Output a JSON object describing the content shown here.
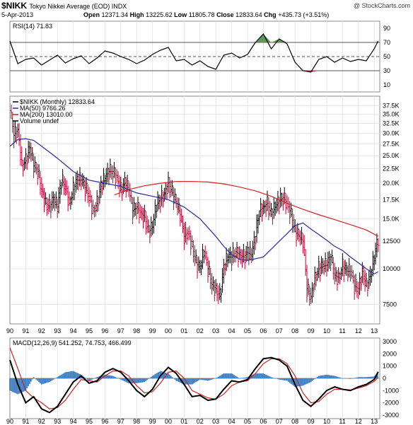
{
  "header": {
    "ticker": "$NIKK",
    "name": "Tokyo Nikkei Average (EOD) INDX",
    "date": "5-Apr-2013",
    "copyright": "@ StockCharts.com",
    "open_label": "Open",
    "open": "12371.34",
    "high_label": "High",
    "high": "13225.62",
    "low_label": "Low",
    "low": "11805.78",
    "close_label": "Close",
    "close": "12833.64",
    "chg_label": "Chg",
    "chg": "+435.73 (+3.51%)"
  },
  "colors": {
    "price_up": "#000000",
    "price_down": "#cc0033",
    "ma50": "#2a2a9c",
    "ma200": "#d42020",
    "macd": "#000000",
    "signal": "#d42020",
    "histogram": "#3b7fc4",
    "rsi_overbought_fill": "#5a9a5a",
    "rsi_oversold_fill": "#c0306a"
  },
  "chart_data": [
    {
      "type": "line",
      "title": "RSI(14) 71.83",
      "x_ticks": [
        "90",
        "91",
        "92",
        "93",
        "94",
        "95",
        "96",
        "97",
        "98",
        "99",
        "00",
        "01",
        "02",
        "03",
        "04",
        "05",
        "06",
        "07",
        "08",
        "09",
        "10",
        "11",
        "12",
        "13"
      ],
      "yticks": [
        10,
        30,
        50,
        70,
        90
      ],
      "ylim": [
        0,
        100
      ],
      "reference_lines": [
        30,
        50,
        70
      ],
      "series": [
        {
          "name": "RSI(14)",
          "x": [
            1990.0,
            1990.5,
            1991.0,
            1991.5,
            1992.0,
            1992.5,
            1993.0,
            1993.5,
            1994.0,
            1994.5,
            1995.0,
            1995.5,
            1996.0,
            1996.5,
            1997.0,
            1997.5,
            1998.0,
            1998.5,
            1999.0,
            1999.5,
            2000.0,
            2000.5,
            2001.0,
            2001.5,
            2002.0,
            2002.5,
            2003.0,
            2003.5,
            2004.0,
            2004.5,
            2005.0,
            2005.5,
            2006.0,
            2006.5,
            2007.0,
            2007.5,
            2008.0,
            2008.5,
            2009.0,
            2009.5,
            2010.0,
            2010.5,
            2011.0,
            2011.5,
            2012.0,
            2012.5,
            2013.0,
            2013.25
          ],
          "values": [
            72,
            40,
            46,
            48,
            38,
            45,
            52,
            41,
            47,
            51,
            40,
            48,
            58,
            55,
            50,
            46,
            40,
            45,
            53,
            59,
            63,
            44,
            46,
            38,
            44,
            36,
            32,
            52,
            55,
            48,
            53,
            70,
            82,
            61,
            75,
            68,
            42,
            30,
            28,
            46,
            50,
            42,
            48,
            43,
            46,
            44,
            61,
            72
          ]
        }
      ]
    },
    {
      "type": "line",
      "title": "$NIKK (Monthly) 12833.64",
      "scale": "log",
      "ylim": [
        6400,
        40500
      ],
      "yticks": [
        7500,
        10000,
        12500,
        15000,
        17500,
        20000,
        22500,
        25000,
        27500,
        30000,
        32500,
        35000,
        37500
      ],
      "ytick_labels": [
        "7500",
        "10000",
        "12500",
        "15.0K",
        "17.5K",
        "20.0K",
        "22.5K",
        "25.0K",
        "27.5K",
        "30.0K",
        "32.5K",
        "35.0K",
        "37.5K"
      ],
      "x_ticks": [
        "90",
        "91",
        "92",
        "93",
        "94",
        "95",
        "96",
        "97",
        "98",
        "99",
        "00",
        "01",
        "02",
        "03",
        "04",
        "05",
        "06",
        "07",
        "08",
        "09",
        "10",
        "11",
        "12",
        "13"
      ],
      "legend": [
        "$NIKK (Monthly) 12833.64",
        "MA(50) 9766.26",
        "MA(200) 13010.00",
        "Volume undef"
      ],
      "series": [
        {
          "name": "$NIKK",
          "x": [
            1990.0,
            1990.25,
            1990.5,
            1990.75,
            1991.0,
            1991.25,
            1991.5,
            1991.75,
            1992.0,
            1992.25,
            1992.5,
            1992.75,
            1993.0,
            1993.25,
            1993.5,
            1993.75,
            1994.0,
            1994.25,
            1994.5,
            1994.75,
            1995.0,
            1995.25,
            1995.5,
            1995.75,
            1996.0,
            1996.25,
            1996.5,
            1996.75,
            1997.0,
            1997.25,
            1997.5,
            1997.75,
            1998.0,
            1998.25,
            1998.5,
            1998.75,
            1999.0,
            1999.25,
            1999.5,
            1999.75,
            2000.0,
            2000.25,
            2000.5,
            2000.75,
            2001.0,
            2001.25,
            2001.5,
            2001.75,
            2002.0,
            2002.25,
            2002.5,
            2002.75,
            2003.0,
            2003.25,
            2003.5,
            2003.75,
            2004.0,
            2004.25,
            2004.5,
            2004.75,
            2005.0,
            2005.25,
            2005.5,
            2005.75,
            2006.0,
            2006.25,
            2006.5,
            2006.75,
            2007.0,
            2007.25,
            2007.5,
            2007.75,
            2008.0,
            2008.25,
            2008.5,
            2008.75,
            2009.0,
            2009.25,
            2009.5,
            2009.75,
            2010.0,
            2010.25,
            2010.5,
            2010.75,
            2011.0,
            2011.25,
            2011.5,
            2011.75,
            2012.0,
            2012.25,
            2012.5,
            2012.75,
            2013.0,
            2013.25
          ],
          "values": [
            36000,
            29500,
            31000,
            23000,
            24000,
            26500,
            23000,
            22000,
            19000,
            17000,
            16500,
            17500,
            16500,
            20500,
            19500,
            17000,
            19000,
            20500,
            20500,
            19300,
            18000,
            16000,
            17000,
            19500,
            20800,
            22000,
            22000,
            21000,
            19000,
            20000,
            19000,
            16000,
            16500,
            15800,
            15200,
            13500,
            14000,
            16800,
            17500,
            18500,
            20000,
            18500,
            17000,
            15500,
            13000,
            13500,
            12000,
            10500,
            10000,
            11500,
            10000,
            8800,
            8500,
            8000,
            10000,
            11000,
            11000,
            11500,
            11200,
            11000,
            11400,
            11200,
            13000,
            16000,
            16500,
            17000,
            15500,
            16500,
            17300,
            17800,
            17000,
            15500,
            13500,
            13000,
            12500,
            8500,
            8000,
            9300,
            10000,
            10200,
            10300,
            11000,
            9500,
            9300,
            10200,
            9800,
            9800,
            8700,
            8500,
            9800,
            8700,
            9400,
            10900,
            12833.64
          ]
        },
        {
          "name": "MA(50)",
          "x": [
            1990.0,
            1990.5,
            1991.0,
            1991.5,
            1992.0,
            1993.0,
            1994.0,
            1995.0,
            1996.0,
            1997.0,
            1998.0,
            1999.0,
            2000.0,
            2001.0,
            2002.0,
            2003.0,
            2003.5,
            2004.0,
            2004.5,
            2005.0,
            2006.0,
            2007.0,
            2007.5,
            2008.0,
            2008.5,
            2009.0,
            2009.5,
            2010.0,
            2010.5,
            2011.0,
            2011.5,
            2012.0,
            2012.5,
            2013.0,
            2013.25
          ],
          "values": [
            27000,
            28500,
            28700,
            28300,
            27000,
            24500,
            22000,
            20500,
            20000,
            19500,
            18500,
            18000,
            17500,
            16500,
            15000,
            13000,
            12000,
            11200,
            10800,
            10700,
            11000,
            12500,
            13300,
            14200,
            14500,
            13800,
            13200,
            12600,
            12000,
            11600,
            11000,
            10500,
            10000,
            9600,
            9766.26
          ]
        },
        {
          "name": "MA(200)",
          "x": [
            1996.6,
            1997.5,
            1998.5,
            1999.5,
            2000.5,
            2001.5,
            2002.5,
            2003.5,
            2004.5,
            2005.5,
            2006.5,
            2007.5,
            2008.5,
            2009.5,
            2010.5,
            2011.5,
            2012.5,
            2013.25
          ],
          "values": [
            18200,
            19000,
            19600,
            20000,
            20300,
            20300,
            20200,
            19900,
            19400,
            18800,
            18000,
            17000,
            16200,
            15500,
            14900,
            14300,
            13700,
            13010
          ]
        }
      ]
    },
    {
      "type": "line",
      "title": "MACD(12,26,9) 541.252, 74.753, 466.499",
      "ylim": [
        -3300,
        3300
      ],
      "yticks": [
        -3000,
        -2000,
        -1000,
        0,
        1000,
        2000,
        3000
      ],
      "x_ticks": [
        "90",
        "91",
        "92",
        "93",
        "94",
        "95",
        "96",
        "97",
        "98",
        "99",
        "00",
        "01",
        "02",
        "03",
        "04",
        "05",
        "06",
        "07",
        "08",
        "09",
        "10",
        "11",
        "12",
        "13"
      ],
      "series": [
        {
          "name": "MACD",
          "x": [
            1990.0,
            1990.5,
            1991.0,
            1991.5,
            1992.0,
            1992.5,
            1993.0,
            1993.5,
            1994.0,
            1994.5,
            1995.0,
            1995.5,
            1996.0,
            1996.5,
            1997.0,
            1997.5,
            1998.0,
            1998.5,
            1999.0,
            1999.5,
            2000.0,
            2000.5,
            2001.0,
            2001.5,
            2002.0,
            2002.5,
            2003.0,
            2003.5,
            2004.0,
            2004.5,
            2005.0,
            2005.5,
            2006.0,
            2006.5,
            2007.0,
            2007.5,
            2008.0,
            2008.5,
            2009.0,
            2009.5,
            2010.0,
            2010.5,
            2011.0,
            2011.5,
            2012.0,
            2012.5,
            2013.0,
            2013.25
          ],
          "values": [
            1500,
            -500,
            -2000,
            -1500,
            -2500,
            -2800,
            -2300,
            -1300,
            -300,
            200,
            -400,
            -200,
            500,
            800,
            500,
            -200,
            -1000,
            -1500,
            -900,
            200,
            900,
            400,
            -500,
            -1500,
            -1400,
            -1800,
            -1700,
            -900,
            -200,
            -300,
            -100,
            800,
            1600,
            1700,
            1500,
            1000,
            -500,
            -1800,
            -2300,
            -1700,
            -1000,
            -700,
            -900,
            -1000,
            -700,
            -500,
            -100,
            541
          ]
        },
        {
          "name": "Signal",
          "x": [
            1990.0,
            1990.5,
            1991.0,
            1991.5,
            1992.0,
            1992.5,
            1993.0,
            1993.5,
            1994.0,
            1994.5,
            1995.0,
            1995.5,
            1996.0,
            1996.5,
            1997.0,
            1997.5,
            1998.0,
            1998.5,
            1999.0,
            1999.5,
            2000.0,
            2000.5,
            2001.0,
            2001.5,
            2002.0,
            2002.5,
            2003.0,
            2003.5,
            2004.0,
            2004.5,
            2005.0,
            2005.5,
            2006.0,
            2006.5,
            2007.0,
            2007.5,
            2008.0,
            2008.5,
            2009.0,
            2009.5,
            2010.0,
            2010.5,
            2011.0,
            2011.5,
            2012.0,
            2012.5,
            2013.0,
            2013.25
          ],
          "values": [
            2500,
            800,
            -1000,
            -1600,
            -2000,
            -2500,
            -2400,
            -1800,
            -900,
            -100,
            -200,
            -300,
            200,
            600,
            600,
            200,
            -600,
            -1200,
            -1100,
            -400,
            500,
            600,
            0,
            -1000,
            -1300,
            -1600,
            -1700,
            -1300,
            -600,
            -300,
            -200,
            400,
            1200,
            1600,
            1600,
            1200,
            200,
            -1200,
            -2000,
            -1900,
            -1300,
            -900,
            -900,
            -950,
            -800,
            -600,
            -250,
            75
          ]
        },
        {
          "name": "Histogram",
          "x": [
            1990.0,
            1990.5,
            1991.0,
            1991.5,
            1992.0,
            1992.5,
            1993.0,
            1993.5,
            1994.0,
            1994.5,
            1995.0,
            1995.5,
            1996.0,
            1996.5,
            1997.0,
            1997.5,
            1998.0,
            1998.5,
            1999.0,
            1999.5,
            2000.0,
            2000.5,
            2001.0,
            2001.5,
            2002.0,
            2002.5,
            2003.0,
            2003.5,
            2004.0,
            2004.5,
            2005.0,
            2005.5,
            2006.0,
            2006.5,
            2007.0,
            2007.5,
            2008.0,
            2008.5,
            2009.0,
            2009.5,
            2010.0,
            2010.5,
            2011.0,
            2011.5,
            2012.0,
            2012.5,
            2013.0,
            2013.25
          ],
          "values": [
            -1000,
            -1300,
            -1000,
            100,
            -500,
            -300,
            100,
            500,
            600,
            300,
            -200,
            100,
            300,
            200,
            -100,
            -400,
            -400,
            -300,
            200,
            600,
            400,
            -200,
            -500,
            -500,
            -100,
            -200,
            0,
            400,
            400,
            0,
            100,
            400,
            400,
            100,
            -100,
            -200,
            -700,
            -600,
            -300,
            200,
            300,
            200,
            0,
            -50,
            100,
            100,
            150,
            466
          ]
        }
      ]
    }
  ]
}
